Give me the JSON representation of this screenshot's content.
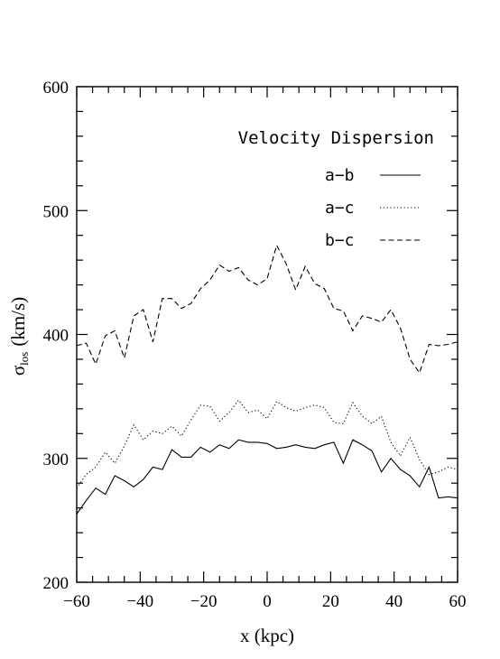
{
  "chart_data": {
    "type": "line",
    "title": "Velocity Dispersion",
    "xlabel": "x (kpc)",
    "ylabel": "σ_los (km/s)",
    "ylabel_main": "σ",
    "ylabel_sub": "los",
    "ylabel_unit": "(km/s)",
    "xlim": [
      -60,
      60
    ],
    "ylim": [
      200,
      600
    ],
    "xticks": [
      -60,
      -40,
      -20,
      0,
      20,
      40,
      60
    ],
    "xtick_labels": [
      "−60",
      "−40",
      "−20",
      "0",
      "20",
      "40",
      "60"
    ],
    "yticks": [
      200,
      300,
      400,
      500,
      600
    ],
    "ytick_labels": [
      "200",
      "300",
      "400",
      "500",
      "600"
    ],
    "grid": false,
    "legend_position": "top-right",
    "x": [
      -60,
      -57,
      -54,
      -51,
      -48,
      -45,
      -42,
      -39,
      -36,
      -33,
      -30,
      -27,
      -24,
      -21,
      -18,
      -15,
      -12,
      -9,
      -6,
      -3,
      0,
      3,
      6,
      9,
      12,
      15,
      18,
      21,
      24,
      27,
      30,
      33,
      36,
      39,
      42,
      45,
      48,
      51,
      54,
      57,
      60
    ],
    "series": [
      {
        "name": "a−b",
        "style": "solid",
        "values": [
          255,
          266,
          276,
          271,
          286,
          282,
          277,
          283,
          293,
          291,
          307,
          301,
          301,
          309,
          305,
          311,
          308,
          315,
          313,
          313,
          312,
          308,
          309,
          311,
          309,
          308,
          311,
          313,
          296,
          315,
          311,
          306,
          289,
          300,
          291,
          286,
          277,
          293,
          268,
          269,
          268
        ]
      },
      {
        "name": "a−c",
        "style": "dotted",
        "values": [
          276,
          287,
          293,
          305,
          296,
          310,
          327,
          315,
          322,
          320,
          326,
          318,
          331,
          343,
          342,
          330,
          337,
          347,
          337,
          339,
          332,
          346,
          341,
          338,
          341,
          343,
          341,
          329,
          328,
          345,
          334,
          328,
          334,
          313,
          302,
          317,
          299,
          287,
          289,
          293,
          291
        ]
      },
      {
        "name": "b−c",
        "style": "dashed",
        "values": [
          391,
          393,
          376,
          399,
          403,
          381,
          415,
          420,
          394,
          429,
          429,
          421,
          425,
          437,
          444,
          456,
          451,
          454,
          444,
          440,
          445,
          472,
          457,
          436,
          455,
          441,
          437,
          421,
          419,
          403,
          415,
          413,
          410,
          420,
          405,
          380,
          369,
          392,
          391,
          392,
          394
        ]
      }
    ]
  }
}
